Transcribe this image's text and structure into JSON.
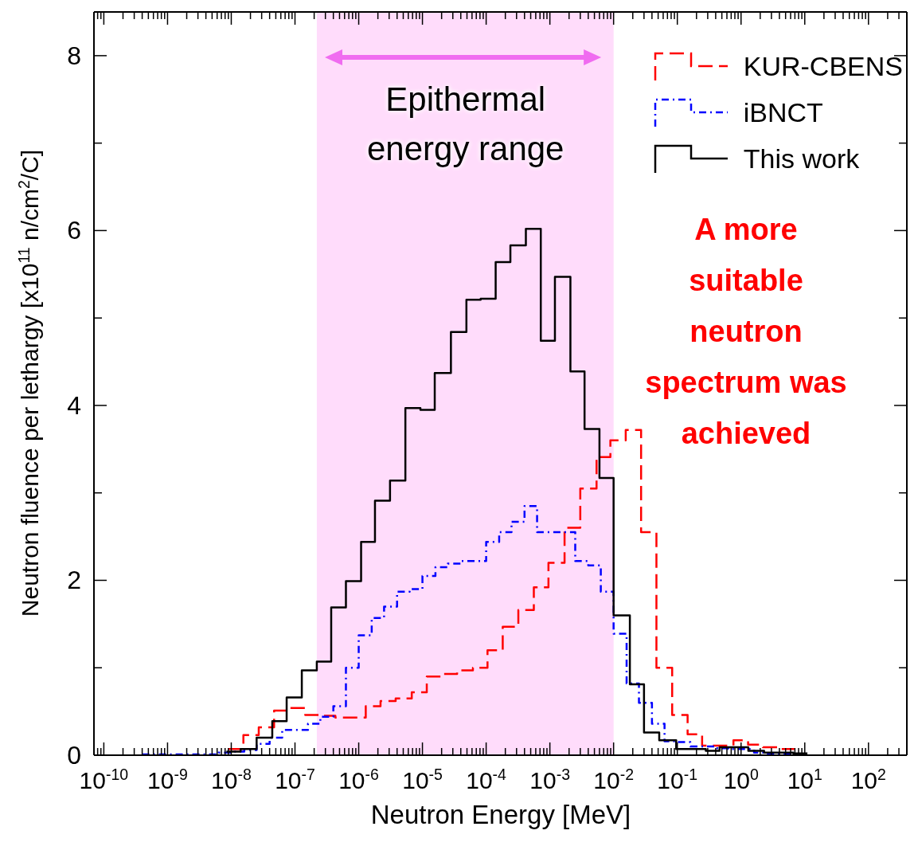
{
  "chart_data": {
    "type": "step",
    "xlabel": "Neutron Energy [MeV]",
    "ylabel": "Neutron fluence per lethargy  [x10$^{11}$ n/cm$^{2}$/C]",
    "log": "x",
    "xlim": [
      7e-11,
      400
    ],
    "ylim": [
      0,
      8.5
    ],
    "xticks": [
      {
        "value": 7e-11,
        "label": null
      },
      {
        "value": 8e-11,
        "label": null
      },
      {
        "value": 9e-11,
        "label": null
      },
      {
        "value": 1e-10,
        "label": "10$^{-10}$"
      },
      {
        "value": 2e-10,
        "label": null
      },
      {
        "value": 3e-10,
        "label": null
      },
      {
        "value": 4e-10,
        "label": null
      },
      {
        "value": 5e-10,
        "label": null
      },
      {
        "value": 6e-10,
        "label": null
      },
      {
        "value": 7e-10,
        "label": null
      },
      {
        "value": 8e-10,
        "label": null
      },
      {
        "value": 9e-10,
        "label": null
      },
      {
        "value": 1e-09,
        "label": "10$^{-9}$"
      },
      {
        "value": 2e-09,
        "label": null
      },
      {
        "value": 3e-09,
        "label": null
      },
      {
        "value": 4e-09,
        "label": null
      },
      {
        "value": 5e-09,
        "label": null
      },
      {
        "value": 6e-09,
        "label": null
      },
      {
        "value": 7e-09,
        "label": null
      },
      {
        "value": 8e-09,
        "label": null
      },
      {
        "value": 9e-09,
        "label": null
      },
      {
        "value": 1e-08,
        "label": "10$^{-8}$"
      },
      {
        "value": 2e-08,
        "label": null
      },
      {
        "value": 3e-08,
        "label": null
      },
      {
        "value": 4e-08,
        "label": null
      },
      {
        "value": 5e-08,
        "label": null
      },
      {
        "value": 6e-08,
        "label": null
      },
      {
        "value": 7e-08,
        "label": null
      },
      {
        "value": 8e-08,
        "label": null
      },
      {
        "value": 9e-08,
        "label": null
      },
      {
        "value": 1e-07,
        "label": "10$^{-7}$"
      },
      {
        "value": 2e-07,
        "label": null
      },
      {
        "value": 3e-07,
        "label": null
      },
      {
        "value": 4e-07,
        "label": null
      },
      {
        "value": 5e-07,
        "label": null
      },
      {
        "value": 6e-07,
        "label": null
      },
      {
        "value": 7e-07,
        "label": null
      },
      {
        "value": 8e-07,
        "label": null
      },
      {
        "value": 9e-07,
        "label": null
      },
      {
        "value": 1e-06,
        "label": "10$^{-6}$"
      },
      {
        "value": 2e-06,
        "label": null
      },
      {
        "value": 3e-06,
        "label": null
      },
      {
        "value": 4e-06,
        "label": null
      },
      {
        "value": 5e-06,
        "label": null
      },
      {
        "value": 6e-06,
        "label": null
      },
      {
        "value": 7e-06,
        "label": null
      },
      {
        "value": 8e-06,
        "label": null
      },
      {
        "value": 9e-06,
        "label": null
      },
      {
        "value": 1e-05,
        "label": "10$^{-5}$"
      },
      {
        "value": 2e-05,
        "label": null
      },
      {
        "value": 3e-05,
        "label": null
      },
      {
        "value": 4e-05,
        "label": null
      },
      {
        "value": 5e-05,
        "label": null
      },
      {
        "value": 6e-05,
        "label": null
      },
      {
        "value": 7e-05,
        "label": null
      },
      {
        "value": 8e-05,
        "label": null
      },
      {
        "value": 9e-05,
        "label": null
      },
      {
        "value": 0.0001,
        "label": "10$^{-4}$"
      },
      {
        "value": 0.0002,
        "label": null
      },
      {
        "value": 0.0003,
        "label": null
      },
      {
        "value": 0.0004,
        "label": null
      },
      {
        "value": 0.0005,
        "label": null
      },
      {
        "value": 0.0006,
        "label": null
      },
      {
        "value": 0.0007,
        "label": null
      },
      {
        "value": 0.0008,
        "label": null
      },
      {
        "value": 0.0009,
        "label": null
      },
      {
        "value": 0.001,
        "label": "10$^{-3}$"
      },
      {
        "value": 0.002,
        "label": null
      },
      {
        "value": 0.003,
        "label": null
      },
      {
        "value": 0.004,
        "label": null
      },
      {
        "value": 0.005,
        "label": null
      },
      {
        "value": 0.006,
        "label": null
      },
      {
        "value": 0.007,
        "label": null
      },
      {
        "value": 0.008,
        "label": null
      },
      {
        "value": 0.009,
        "label": null
      },
      {
        "value": 0.01,
        "label": "10$^{-2}$"
      },
      {
        "value": 0.02,
        "label": null
      },
      {
        "value": 0.03,
        "label": null
      },
      {
        "value": 0.04,
        "label": null
      },
      {
        "value": 0.05,
        "label": null
      },
      {
        "value": 0.06,
        "label": null
      },
      {
        "value": 0.07,
        "label": null
      },
      {
        "value": 0.08,
        "label": null
      },
      {
        "value": 0.09,
        "label": null
      },
      {
        "value": 0.1,
        "label": "10$^{-1}$"
      },
      {
        "value": 0.2,
        "label": null
      },
      {
        "value": 0.3,
        "label": null
      },
      {
        "value": 0.4,
        "label": null
      },
      {
        "value": 0.5,
        "label": null
      },
      {
        "value": 0.6,
        "label": null
      },
      {
        "value": 0.7,
        "label": null
      },
      {
        "value": 0.8,
        "label": null
      },
      {
        "value": 0.9,
        "label": null
      },
      {
        "value": 1,
        "label": "10$^{0}$"
      },
      {
        "value": 2,
        "label": null
      },
      {
        "value": 3,
        "label": null
      },
      {
        "value": 4,
        "label": null
      },
      {
        "value": 5,
        "label": null
      },
      {
        "value": 6,
        "label": null
      },
      {
        "value": 7,
        "label": null
      },
      {
        "value": 8,
        "label": null
      },
      {
        "value": 9,
        "label": null
      },
      {
        "value": 10,
        "label": "10$^{1}$"
      },
      {
        "value": 20,
        "label": null
      },
      {
        "value": 30,
        "label": null
      },
      {
        "value": 40,
        "label": null
      },
      {
        "value": 50,
        "label": null
      },
      {
        "value": 60,
        "label": null
      },
      {
        "value": 70,
        "label": null
      },
      {
        "value": 80,
        "label": null
      },
      {
        "value": 90,
        "label": null
      },
      {
        "value": 100,
        "label": "10$^{2}$"
      },
      {
        "value": 200,
        "label": null
      },
      {
        "value": 300,
        "label": null
      },
      {
        "value": 400,
        "label": null
      }
    ],
    "yticks": [
      0,
      {
        "value": 1,
        "label": null
      },
      2,
      {
        "value": 3,
        "label": null
      },
      4,
      {
        "value": 5,
        "label": null
      },
      6,
      {
        "value": 7,
        "label": null
      },
      8
    ],
    "legend": "top right",
    "marker": "none",
    "bands": [
      {
        "axis": "x",
        "from": 2.2e-07,
        "to": 0.01,
        "label": "Epithermal energy range",
        "color": "#ffdcfb"
      }
    ],
    "annotations": [
      "A more suitable neutron spectrum was achieved"
    ],
    "series": [
      {
        "name": "KUR-CBENS",
        "color": "#ff0000",
        "line_style": "dashed",
        "x": [
          8.9e-09,
          1.55e-08,
          2.7e-08,
          4.7e-08,
          8.1e-08,
          1.45e-07,
          2.5e-07,
          4.3e-07,
          7.2e-07,
          1.29e-06,
          2.2e-06,
          3.8e-06,
          6.8e-06,
          1.17e-05,
          2e-05,
          3.5e-05,
          6.2e-05,
          0.000105,
          0.000182,
          0.00032,
          0.00056,
          0.00095,
          0.0017,
          0.003,
          0.0054,
          0.0089,
          0.0155,
          0.027,
          0.047,
          0.083,
          0.145,
          0.245,
          0.43,
          0.76,
          1.29,
          2.2,
          4.0,
          6.9
        ],
        "values": [
          0.07,
          0.23,
          0.32,
          0.51,
          0.54,
          0.46,
          0.45,
          0.43,
          0.43,
          0.56,
          0.62,
          0.65,
          0.72,
          0.9,
          0.93,
          0.97,
          1.0,
          1.2,
          1.47,
          1.66,
          1.92,
          2.2,
          2.6,
          3.05,
          3.41,
          3.6,
          3.72,
          2.55,
          1.0,
          0.46,
          0.24,
          0.11,
          0.11,
          0.17,
          0.12,
          0.09,
          0.07,
          0.07
        ]
      },
      {
        "name": "iBNCT",
        "color": "#0000ff",
        "line_style": "dotted",
        "x": [
          4e-10,
          6.3e-09,
          1e-08,
          1.6e-08,
          2.5e-08,
          4e-08,
          6.3e-08,
          1e-07,
          1.6e-07,
          2.5e-07,
          4e-07,
          6.3e-07,
          1e-06,
          1.6e-06,
          2.5e-06,
          4e-06,
          6.3e-06,
          1e-05,
          1.6e-05,
          2.5e-05,
          4e-05,
          6.3e-05,
          0.0001,
          0.00016,
          0.00025,
          0.0004,
          0.00063,
          0.001,
          0.0016,
          0.0025,
          0.004,
          0.0063,
          0.01,
          0.016,
          0.025,
          0.04,
          0.063,
          0.1,
          0.16,
          0.25,
          0.4,
          0.63,
          1.0,
          1.6,
          2.5,
          6.3
        ],
        "values": [
          0.01,
          0.03,
          0.04,
          0.06,
          0.13,
          0.2,
          0.29,
          0.29,
          0.36,
          0.44,
          0.56,
          1.0,
          1.37,
          1.57,
          1.7,
          1.87,
          1.9,
          2.05,
          2.15,
          2.19,
          2.22,
          2.22,
          2.44,
          2.55,
          2.67,
          2.85,
          2.55,
          2.55,
          2.55,
          2.22,
          2.17,
          1.87,
          1.39,
          0.82,
          0.6,
          0.36,
          0.16,
          0.15,
          0.1,
          0.1,
          0.08,
          0.07,
          0.07,
          0.03,
          0.02,
          0.02
        ]
      },
      {
        "name": "This work",
        "color": "#000000",
        "line_style": "solid",
        "x": [
          8.4e-09,
          1.4e-08,
          2.5e-08,
          4.4e-08,
          7.4e-08,
          1.28e-07,
          2.2e-07,
          3.7e-07,
          6.3e-07,
          1.09e-06,
          1.8e-06,
          3.1e-06,
          5.4e-06,
          9.3e-06,
          1.56e-05,
          2.8e-05,
          4.9e-05,
          8.2e-05,
          0.000141,
          0.00024,
          0.00042,
          0.00072,
          0.0012,
          0.0021,
          0.0035,
          0.006,
          0.01,
          0.018,
          0.03,
          0.052,
          0.096,
          0.17,
          0.28,
          0.46,
          0.79,
          1.3,
          2.3,
          3.8,
          6.6,
          11
        ],
        "values": [
          0.04,
          0.07,
          0.2,
          0.39,
          0.66,
          0.97,
          1.07,
          1.69,
          1.99,
          2.44,
          2.91,
          3.14,
          3.97,
          3.95,
          4.37,
          4.84,
          5.21,
          5.22,
          5.64,
          5.83,
          6.02,
          4.74,
          5.47,
          4.39,
          3.73,
          3.17,
          1.6,
          0.81,
          0.26,
          0.17,
          0.07,
          0.07,
          0.05,
          0.09,
          0.09,
          0.05,
          0.03,
          0.03,
          0.02,
          0.02
        ]
      }
    ]
  }
}
